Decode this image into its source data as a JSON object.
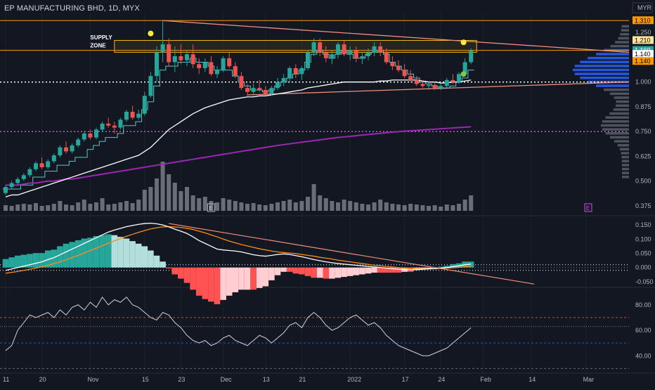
{
  "header": {
    "title": "EP MANUFACTURING BHD, 1D, MYX",
    "currency": "MYR"
  },
  "annotations": {
    "supply_zone": [
      "SUPPLY",
      "ZONE"
    ],
    "earnings_marker": "E"
  },
  "colors": {
    "background": "#131722",
    "up": "#26a69a",
    "down": "#ef5350",
    "grid": "#1e222d",
    "ma_white": "#ffffff",
    "ma_purple": "#9c27b0",
    "stepline": "#5ec2c6",
    "trendline": "#f08d7e",
    "macd_line": "#ffffff",
    "signal_line": "#ff8c1a",
    "zone": "#f0b90b"
  },
  "price_badges": [
    {
      "label": "1.310",
      "value": 1.31,
      "bg": "#ff9800",
      "fg": "#000000"
    },
    {
      "label": "1.210",
      "value": 1.21,
      "bg": "#ffe59a",
      "fg": "#000000"
    },
    {
      "label": "1.160",
      "value": 1.16,
      "bg": "#26a69a",
      "fg": "#ffffff"
    },
    {
      "label": "1.140",
      "value": 1.14,
      "bg": "#ffffff",
      "fg": "#000000"
    },
    {
      "label": "1.140",
      "value": 1.14,
      "bg": "#ff9800",
      "fg": "#000000",
      "shift": 1
    }
  ],
  "chart_data": [
    {
      "type": "candlestick",
      "title": "EP MANUFACTURING BHD, 1D, MYX",
      "y_ticks": [
        "1.250",
        "1.000",
        "0.875",
        "0.750",
        "0.625",
        "0.500",
        "0.375"
      ],
      "y_tick_values": [
        1.25,
        1.0,
        0.875,
        0.75,
        0.625,
        0.5,
        0.375
      ],
      "x_ticks": [
        "11",
        "20",
        "Nov",
        "15",
        "23",
        "Dec",
        "13",
        "21",
        "2022",
        "17",
        "24",
        "Feb",
        "14",
        "Mar"
      ],
      "ylim": [
        0.35,
        1.35
      ],
      "candles": [
        [
          0.44,
          0.48,
          0.43,
          0.47
        ],
        [
          0.47,
          0.5,
          0.46,
          0.49
        ],
        [
          0.49,
          0.52,
          0.48,
          0.51
        ],
        [
          0.51,
          0.54,
          0.5,
          0.53
        ],
        [
          0.53,
          0.57,
          0.52,
          0.56
        ],
        [
          0.56,
          0.6,
          0.55,
          0.59
        ],
        [
          0.59,
          0.62,
          0.56,
          0.57
        ],
        [
          0.57,
          0.61,
          0.56,
          0.6
        ],
        [
          0.6,
          0.64,
          0.59,
          0.63
        ],
        [
          0.63,
          0.68,
          0.62,
          0.67
        ],
        [
          0.67,
          0.7,
          0.64,
          0.65
        ],
        [
          0.65,
          0.69,
          0.64,
          0.68
        ],
        [
          0.68,
          0.72,
          0.67,
          0.71
        ],
        [
          0.71,
          0.75,
          0.7,
          0.74
        ],
        [
          0.74,
          0.76,
          0.71,
          0.72
        ],
        [
          0.72,
          0.77,
          0.71,
          0.76
        ],
        [
          0.76,
          0.8,
          0.75,
          0.79
        ],
        [
          0.79,
          0.82,
          0.77,
          0.78
        ],
        [
          0.78,
          0.8,
          0.74,
          0.77
        ],
        [
          0.77,
          0.82,
          0.76,
          0.81
        ],
        [
          0.81,
          0.86,
          0.8,
          0.85
        ],
        [
          0.85,
          0.88,
          0.81,
          0.82
        ],
        [
          0.82,
          0.86,
          0.81,
          0.84
        ],
        [
          0.84,
          0.95,
          0.83,
          0.93
        ],
        [
          0.93,
          1.05,
          0.92,
          1.03
        ],
        [
          1.03,
          1.18,
          1.0,
          1.15
        ],
        [
          1.15,
          1.31,
          1.1,
          1.19
        ],
        [
          1.19,
          1.22,
          1.08,
          1.1
        ],
        [
          1.1,
          1.18,
          1.05,
          1.13
        ],
        [
          1.13,
          1.19,
          1.09,
          1.11
        ],
        [
          1.11,
          1.16,
          1.08,
          1.14
        ],
        [
          1.14,
          1.19,
          1.07,
          1.09
        ],
        [
          1.09,
          1.12,
          1.04,
          1.07
        ],
        [
          1.07,
          1.12,
          1.05,
          1.1
        ],
        [
          1.1,
          1.13,
          1.03,
          1.04
        ],
        [
          1.04,
          1.08,
          1.02,
          1.06
        ],
        [
          1.06,
          1.13,
          1.05,
          1.12
        ],
        [
          1.12,
          1.15,
          1.07,
          1.08
        ],
        [
          1.08,
          1.1,
          1.02,
          1.03
        ],
        [
          1.03,
          1.05,
          0.96,
          0.97
        ],
        [
          0.97,
          0.99,
          0.93,
          0.95
        ],
        [
          0.95,
          0.99,
          0.93,
          0.97
        ],
        [
          0.97,
          1.01,
          0.95,
          0.96
        ],
        [
          0.96,
          0.98,
          0.93,
          0.94
        ],
        [
          0.94,
          0.98,
          0.93,
          0.97
        ],
        [
          0.97,
          1.02,
          0.96,
          1.0
        ],
        [
          1.0,
          1.04,
          0.98,
          1.02
        ],
        [
          1.02,
          1.08,
          1.0,
          1.07
        ],
        [
          1.07,
          1.09,
          1.02,
          1.04
        ],
        [
          1.04,
          1.08,
          1.01,
          1.07
        ],
        [
          1.07,
          1.16,
          1.06,
          1.15
        ],
        [
          1.15,
          1.22,
          1.13,
          1.2
        ],
        [
          1.2,
          1.22,
          1.13,
          1.15
        ],
        [
          1.15,
          1.18,
          1.1,
          1.12
        ],
        [
          1.12,
          1.16,
          1.09,
          1.14
        ],
        [
          1.14,
          1.2,
          1.12,
          1.19
        ],
        [
          1.19,
          1.21,
          1.13,
          1.14
        ],
        [
          1.14,
          1.18,
          1.11,
          1.16
        ],
        [
          1.16,
          1.18,
          1.1,
          1.12
        ],
        [
          1.12,
          1.15,
          1.09,
          1.13
        ],
        [
          1.13,
          1.17,
          1.11,
          1.15
        ],
        [
          1.15,
          1.2,
          1.13,
          1.18
        ],
        [
          1.18,
          1.2,
          1.13,
          1.15
        ],
        [
          1.15,
          1.17,
          1.09,
          1.1
        ],
        [
          1.1,
          1.13,
          1.06,
          1.08
        ],
        [
          1.08,
          1.11,
          1.05,
          1.06
        ],
        [
          1.06,
          1.09,
          1.02,
          1.03
        ],
        [
          1.03,
          1.06,
          1.0,
          1.01
        ],
        [
          1.01,
          1.03,
          0.98,
          0.99
        ],
        [
          0.99,
          1.01,
          0.97,
          0.98
        ],
        [
          0.98,
          1.0,
          0.96,
          0.985
        ],
        [
          0.985,
          1.0,
          0.96,
          0.97
        ],
        [
          0.97,
          0.99,
          0.96,
          0.98
        ],
        [
          0.98,
          1.02,
          0.97,
          1.01
        ],
        [
          1.01,
          1.04,
          0.99,
          1.0
        ],
        [
          1.0,
          1.05,
          0.99,
          1.04
        ],
        [
          1.04,
          1.12,
          1.03,
          1.1
        ],
        [
          1.1,
          1.17,
          1.09,
          1.16
        ]
      ],
      "volume": [
        8,
        7,
        9,
        10,
        9,
        11,
        7,
        8,
        10,
        14,
        9,
        8,
        12,
        16,
        10,
        12,
        18,
        9,
        10,
        12,
        14,
        11,
        16,
        30,
        34,
        46,
        70,
        52,
        40,
        28,
        34,
        22,
        18,
        20,
        14,
        12,
        18,
        16,
        14,
        12,
        10,
        11,
        9,
        8,
        10,
        12,
        14,
        16,
        12,
        14,
        20,
        38,
        22,
        18,
        14,
        12,
        16,
        14,
        12,
        10,
        9,
        12,
        16,
        12,
        10,
        9,
        8,
        10,
        9,
        8,
        7,
        8,
        6,
        9,
        8,
        10,
        16,
        22
      ],
      "ma_white": [
        0.42,
        0.43,
        0.43,
        0.44,
        0.45,
        0.46,
        0.47,
        0.48,
        0.49,
        0.5,
        0.51,
        0.52,
        0.53,
        0.54,
        0.55,
        0.56,
        0.57,
        0.58,
        0.59,
        0.6,
        0.61,
        0.62,
        0.63,
        0.65,
        0.67,
        0.7,
        0.73,
        0.76,
        0.78,
        0.8,
        0.82,
        0.84,
        0.855,
        0.87,
        0.88,
        0.89,
        0.9,
        0.91,
        0.915,
        0.92,
        0.925,
        0.925,
        0.93,
        0.93,
        0.935,
        0.94,
        0.945,
        0.95,
        0.955,
        0.96,
        0.97,
        0.975,
        0.98,
        0.985,
        0.99,
        0.995,
        1.0,
        1.0,
        1.0,
        1.0,
        1.0,
        1.0,
        1.005,
        1.005,
        1.01,
        1.01,
        1.01,
        1.01,
        1.01,
        1.005,
        1.0,
        1.0,
        0.995,
        0.995,
        1.0,
        1.0,
        1.005,
        1.01
      ],
      "ma_purple": [
        0.48,
        0.48,
        0.48,
        0.485,
        0.49,
        0.49,
        0.495,
        0.5,
        0.5,
        0.505,
        0.51,
        0.51,
        0.515,
        0.52,
        0.525,
        0.53,
        0.535,
        0.54,
        0.545,
        0.55,
        0.555,
        0.56,
        0.565,
        0.57,
        0.575,
        0.58,
        0.585,
        0.59,
        0.595,
        0.6,
        0.605,
        0.61,
        0.615,
        0.62,
        0.625,
        0.63,
        0.635,
        0.64,
        0.645,
        0.65,
        0.655,
        0.66,
        0.665,
        0.67,
        0.675,
        0.68,
        0.684,
        0.688,
        0.692,
        0.696,
        0.7,
        0.704,
        0.708,
        0.712,
        0.716,
        0.72,
        0.723,
        0.726,
        0.729,
        0.732,
        0.735,
        0.738,
        0.741,
        0.744,
        0.747,
        0.75,
        0.752,
        0.754,
        0.756,
        0.758,
        0.76,
        0.762,
        0.764,
        0.766,
        0.768,
        0.77,
        0.772,
        0.774
      ],
      "stepline": [
        0.46,
        0.46,
        0.46,
        0.48,
        0.48,
        0.52,
        0.52,
        0.55,
        0.55,
        0.58,
        0.58,
        0.6,
        0.62,
        0.62,
        0.66,
        0.68,
        0.7,
        0.72,
        0.72,
        0.74,
        0.78,
        0.78,
        0.8,
        0.86,
        0.9,
        0.98,
        1.06,
        1.08,
        1.08,
        1.1,
        1.1,
        1.12,
        1.1,
        1.1,
        1.08,
        1.06,
        1.06,
        1.06,
        1.03,
        1.0,
        0.98,
        0.96,
        0.96,
        0.95,
        0.96,
        0.98,
        1.0,
        1.02,
        1.04,
        1.06,
        1.1,
        1.14,
        1.16,
        1.14,
        1.12,
        1.14,
        1.16,
        1.14,
        1.12,
        1.12,
        1.14,
        1.15,
        1.16,
        1.14,
        1.1,
        1.08,
        1.06,
        1.04,
        1.02,
        1.0,
        0.99,
        0.98,
        0.97,
        0.97,
        0.98,
        1.0,
        1.02,
        1.06
      ],
      "supply_zone": [
        1.15,
        1.21
      ],
      "levels": {
        "dotted_white": 1.0,
        "dotted_magenta": 0.75
      }
    },
    {
      "type": "macd",
      "y_ticks": [
        "0.150",
        "0.100",
        "0.050",
        "0.000",
        "-0.050"
      ],
      "y_tick_values": [
        0.15,
        0.1,
        0.05,
        0.0,
        -0.05
      ],
      "ylim": [
        -0.06,
        0.17
      ],
      "macd": [
        -0.01,
        -0.005,
        0.0,
        0.005,
        0.01,
        0.015,
        0.02,
        0.028,
        0.035,
        0.045,
        0.055,
        0.065,
        0.075,
        0.085,
        0.095,
        0.105,
        0.115,
        0.125,
        0.132,
        0.138,
        0.144,
        0.148,
        0.152,
        0.155,
        0.156,
        0.154,
        0.15,
        0.143,
        0.135,
        0.128,
        0.12,
        0.108,
        0.095,
        0.085,
        0.075,
        0.065,
        0.062,
        0.06,
        0.058,
        0.055,
        0.05,
        0.045,
        0.042,
        0.04,
        0.043,
        0.046,
        0.048,
        0.046,
        0.042,
        0.038,
        0.033,
        0.028,
        0.024,
        0.02,
        0.017,
        0.014,
        0.012,
        0.01,
        0.008,
        0.006,
        0.004,
        0.002,
        0.0,
        -0.002,
        -0.004,
        -0.006,
        -0.007,
        -0.008,
        -0.007,
        -0.006,
        -0.005,
        -0.004,
        -0.002,
        0.0,
        0.003,
        0.006,
        0.01,
        0.012
      ],
      "signal": [
        -0.02,
        -0.017,
        -0.014,
        -0.01,
        -0.006,
        -0.002,
        0.003,
        0.008,
        0.014,
        0.02,
        0.027,
        0.035,
        0.043,
        0.051,
        0.06,
        0.068,
        0.077,
        0.086,
        0.094,
        0.102,
        0.11,
        0.117,
        0.124,
        0.13,
        0.136,
        0.14,
        0.143,
        0.144,
        0.143,
        0.141,
        0.138,
        0.134,
        0.128,
        0.122,
        0.115,
        0.108,
        0.1,
        0.093,
        0.087,
        0.081,
        0.076,
        0.071,
        0.066,
        0.062,
        0.058,
        0.055,
        0.053,
        0.051,
        0.049,
        0.046,
        0.043,
        0.04,
        0.036,
        0.033,
        0.03,
        0.026,
        0.023,
        0.02,
        0.017,
        0.014,
        0.011,
        0.008,
        0.006,
        0.004,
        0.002,
        0.0,
        -0.002,
        -0.003,
        -0.004,
        -0.004,
        -0.004,
        -0.004,
        -0.003,
        -0.002,
        -0.001,
        0.001,
        0.003,
        0.005
      ]
    },
    {
      "type": "rsi",
      "y_ticks": [
        "80.00",
        "60.00",
        "40.00"
      ],
      "y_tick_values": [
        80,
        60,
        40
      ],
      "ylim": [
        28,
        92
      ],
      "bands": {
        "upper": 70,
        "middle": 50,
        "lower": 30
      },
      "values": [
        44,
        48,
        60,
        66,
        72,
        70,
        72,
        74,
        70,
        76,
        72,
        78,
        80,
        76,
        82,
        78,
        86,
        80,
        84,
        82,
        86,
        80,
        78,
        74,
        70,
        68,
        74,
        72,
        66,
        62,
        56,
        52,
        50,
        52,
        48,
        50,
        54,
        56,
        52,
        50,
        48,
        52,
        56,
        54,
        50,
        54,
        58,
        64,
        66,
        62,
        70,
        74,
        70,
        64,
        60,
        62,
        66,
        70,
        72,
        68,
        64,
        66,
        62,
        56,
        52,
        48,
        46,
        44,
        42,
        40,
        40,
        42,
        44,
        46,
        50,
        54,
        58,
        62
      ]
    }
  ]
}
